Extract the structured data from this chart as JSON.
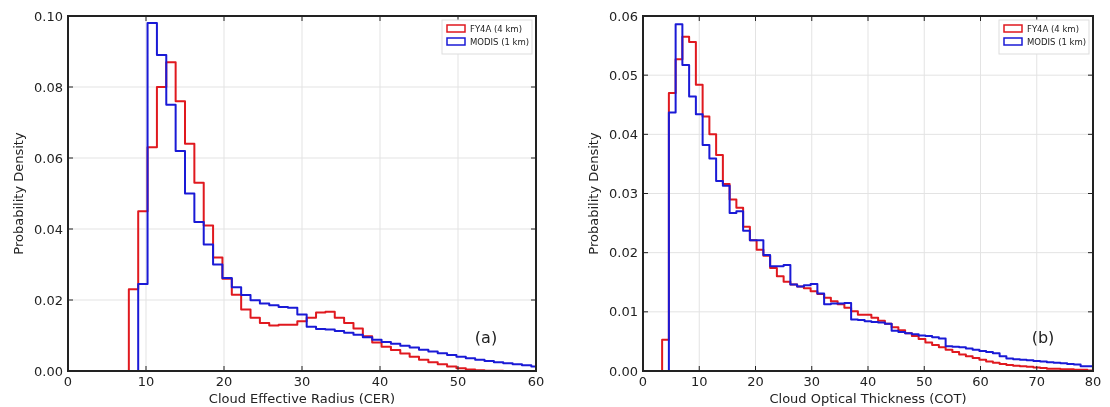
{
  "chart_data": [
    {
      "type": "histogram",
      "xlabel": "Cloud Effective Radius (CER)",
      "ylabel": "Probability Density",
      "bins": [
        7.8,
        9,
        10.2,
        11.4,
        12.6,
        13.8,
        15,
        16.2,
        17.4,
        18.6,
        19.8,
        21,
        22.2,
        23.4,
        24.6,
        25.8,
        27,
        28.2,
        29.4,
        30.6,
        31.8,
        33,
        34.2,
        35.4,
        36.6,
        37.8,
        39,
        40.2,
        41.4,
        42.6,
        43.8,
        45,
        46.2,
        47.4,
        48.6,
        49.8,
        51,
        52.2,
        53.4,
        54.6,
        55.8,
        57,
        58.2,
        59.4,
        60
      ],
      "series": [
        {
          "name": "FY4A (4 km)",
          "color": "#e0191f",
          "values": [
            0.023,
            0.045,
            0.063,
            0.08,
            0.087,
            0.076,
            0.064,
            0.053,
            0.041,
            0.032,
            0.026,
            0.0215,
            0.0173,
            0.015,
            0.0135,
            0.0128,
            0.013,
            0.013,
            0.014,
            0.015,
            0.0165,
            0.0167,
            0.015,
            0.0135,
            0.012,
            0.0098,
            0.008,
            0.0068,
            0.0059,
            0.0049,
            0.004,
            0.0032,
            0.0025,
            0.0019,
            0.0013,
            0.0008,
            0.0004,
            0.0002,
            0.0001,
            0.0001,
            0,
            0,
            0,
            0
          ]
        },
        {
          "name": "MODIS (1 km)",
          "color": "#1a1ad6",
          "values": [
            0,
            0.0245,
            0.098,
            0.089,
            0.075,
            0.062,
            0.05,
            0.042,
            0.0356,
            0.03,
            0.0262,
            0.0236,
            0.0214,
            0.0199,
            0.019,
            0.0185,
            0.018,
            0.0178,
            0.0159,
            0.0125,
            0.0118,
            0.0117,
            0.0113,
            0.0108,
            0.0102,
            0.0095,
            0.0088,
            0.0082,
            0.0077,
            0.0071,
            0.0066,
            0.006,
            0.0055,
            0.005,
            0.0045,
            0.004,
            0.0036,
            0.0032,
            0.0028,
            0.0025,
            0.0022,
            0.0019,
            0.0016,
            0.0013
          ]
        }
      ],
      "xlim": [
        0,
        60
      ],
      "xticks": [
        0,
        10,
        20,
        30,
        40,
        50,
        60
      ],
      "ylim": [
        0,
        0.1
      ],
      "yticks": [
        {
          "value": 0,
          "label": "0.00"
        },
        {
          "value": 0.02,
          "label": "0.02"
        },
        {
          "value": 0.04,
          "label": "0.04"
        },
        {
          "value": 0.06,
          "label": "0.06"
        },
        {
          "value": 0.08,
          "label": "0.08"
        },
        {
          "value": 0.1,
          "label": "0.10"
        }
      ],
      "grid": true,
      "legend": "top right",
      "annotations": [
        "(a)"
      ]
    },
    {
      "type": "histogram",
      "xlabel": "Cloud Optical Thickness (COT)",
      "ylabel": "Probability Density",
      "bins": [
        3.4,
        4.6,
        5.8,
        7,
        8.2,
        9.4,
        10.6,
        11.8,
        13,
        14.2,
        15.4,
        16.6,
        17.8,
        19,
        20.2,
        21.4,
        22.6,
        23.8,
        25,
        26.2,
        27.4,
        28.6,
        29.8,
        31,
        32.2,
        33.4,
        34.6,
        35.8,
        37,
        38.2,
        39.4,
        40.6,
        41.8,
        43,
        44.2,
        45.4,
        46.6,
        47.8,
        49,
        50.2,
        51.4,
        52.6,
        53.8,
        55,
        56.2,
        57.4,
        58.6,
        59.8,
        61,
        62.2,
        63.4,
        64.6,
        65.8,
        67,
        68.2,
        69.4,
        70.6,
        71.8,
        73,
        74.2,
        75.4,
        76.6,
        77.8,
        79,
        80
      ],
      "series": [
        {
          "name": "FY4A (4 km)",
          "color": "#e0191f",
          "values": [
            0.0053,
            0.047,
            0.0527,
            0.0565,
            0.0556,
            0.0484,
            0.043,
            0.04,
            0.0365,
            0.0316,
            0.029,
            0.0276,
            0.0244,
            0.0221,
            0.0205,
            0.0195,
            0.0174,
            0.016,
            0.0151,
            0.0146,
            0.0143,
            0.014,
            0.0135,
            0.013,
            0.0124,
            0.0118,
            0.0113,
            0.0107,
            0.0101,
            0.0095,
            0.0095,
            0.009,
            0.0085,
            0.008,
            0.0074,
            0.0069,
            0.0064,
            0.0059,
            0.0054,
            0.0048,
            0.0044,
            0.004,
            0.0036,
            0.0032,
            0.0028,
            0.0025,
            0.0022,
            0.0019,
            0.0016,
            0.0014,
            0.0012,
            0.001,
            0.0009,
            0.0008,
            0.0007,
            0.0006,
            0.0005,
            0.0004,
            0.0004,
            0.0003,
            0.0003,
            0.0002,
            0.0002,
            0.0001
          ]
        },
        {
          "name": "MODIS (1 km)",
          "color": "#1a1ad6",
          "values": [
            0,
            0.0437,
            0.0586,
            0.0517,
            0.0464,
            0.0434,
            0.0382,
            0.0359,
            0.0321,
            0.0313,
            0.0267,
            0.027,
            0.0237,
            0.0221,
            0.0221,
            0.0196,
            0.0177,
            0.0177,
            0.0179,
            0.0146,
            0.0143,
            0.0145,
            0.0147,
            0.0131,
            0.0113,
            0.0114,
            0.0114,
            0.0115,
            0.0087,
            0.0086,
            0.0084,
            0.0083,
            0.0082,
            0.008,
            0.0068,
            0.0066,
            0.0064,
            0.0062,
            0.006,
            0.0059,
            0.0057,
            0.0055,
            0.0042,
            0.0041,
            0.004,
            0.0038,
            0.0036,
            0.0034,
            0.0032,
            0.003,
            0.0025,
            0.0021,
            0.002,
            0.0019,
            0.0018,
            0.0017,
            0.0016,
            0.0015,
            0.0014,
            0.0013,
            0.0012,
            0.0011,
            0.0008,
            0.0008
          ]
        }
      ],
      "xlim": [
        0,
        80
      ],
      "xticks": [
        0,
        10,
        20,
        30,
        40,
        50,
        60,
        70,
        80
      ],
      "ylim": [
        0,
        0.06
      ],
      "yticks": [
        {
          "value": 0,
          "label": "0.00"
        },
        {
          "value": 0.01,
          "label": "0.01"
        },
        {
          "value": 0.02,
          "label": "0.02"
        },
        {
          "value": 0.03,
          "label": "0.03"
        },
        {
          "value": 0.04,
          "label": "0.04"
        },
        {
          "value": 0.05,
          "label": "0.05"
        },
        {
          "value": 0.06,
          "label": "0.06"
        }
      ],
      "grid": true,
      "legend": "top right",
      "annotations": [
        "(b)"
      ]
    }
  ]
}
